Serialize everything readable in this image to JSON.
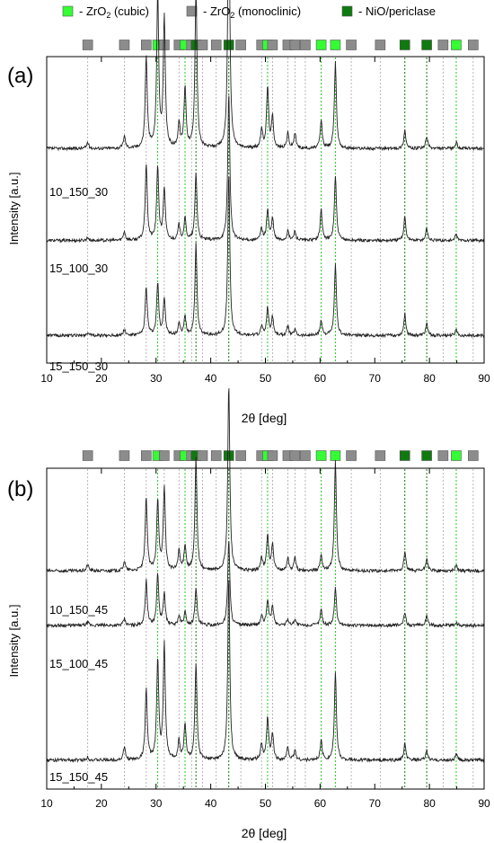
{
  "legend": {
    "items": [
      {
        "label": "- ZrO",
        "sub": "2",
        "suffix": " (cubic)",
        "color": "#33ff33"
      },
      {
        "label": "- ZrO",
        "sub": "2",
        "suffix": " (monoclinic)",
        "color": "#8c8c8c"
      },
      {
        "label": "- NiO/periclase",
        "sub": "",
        "suffix": "",
        "color": "#0f7a0f"
      }
    ]
  },
  "colors": {
    "trace": "#222222",
    "cubic_line": "#22cc22",
    "mono_line": "#a6a6a6",
    "nio_line": "#0f7a0f"
  },
  "reference_markers": [
    {
      "x": 17.5,
      "phase": "monoclinic"
    },
    {
      "x": 24.2,
      "phase": "monoclinic"
    },
    {
      "x": 28.2,
      "phase": "monoclinic"
    },
    {
      "x": 30.3,
      "phase": "cubic"
    },
    {
      "x": 31.5,
      "phase": "monoclinic"
    },
    {
      "x": 34.2,
      "phase": "monoclinic"
    },
    {
      "x": 35.3,
      "phase": "cubic"
    },
    {
      "x": 36.5,
      "phase": "monoclinic"
    },
    {
      "x": 37.3,
      "phase": "nio"
    },
    {
      "x": 38.5,
      "phase": "monoclinic"
    },
    {
      "x": 41.0,
      "phase": "monoclinic"
    },
    {
      "x": 43.3,
      "phase": "nio"
    },
    {
      "x": 45.5,
      "phase": "monoclinic"
    },
    {
      "x": 49.3,
      "phase": "monoclinic"
    },
    {
      "x": 50.4,
      "phase": "cubic"
    },
    {
      "x": 51.3,
      "phase": "monoclinic"
    },
    {
      "x": 54.1,
      "phase": "monoclinic"
    },
    {
      "x": 55.4,
      "phase": "monoclinic"
    },
    {
      "x": 57.3,
      "phase": "monoclinic"
    },
    {
      "x": 60.2,
      "phase": "cubic"
    },
    {
      "x": 62.8,
      "phase": "cubic"
    },
    {
      "x": 65.7,
      "phase": "monoclinic"
    },
    {
      "x": 71.0,
      "phase": "monoclinic"
    },
    {
      "x": 75.5,
      "phase": "nio"
    },
    {
      "x": 79.5,
      "phase": "nio"
    },
    {
      "x": 82.5,
      "phase": "monoclinic"
    },
    {
      "x": 84.9,
      "phase": "cubic"
    },
    {
      "x": 88.0,
      "phase": "monoclinic"
    }
  ],
  "chart_data": [
    {
      "type": "line",
      "panel_label": "(a)",
      "xlabel": "2θ [deg]",
      "ylabel": "Intensity [a.u.]",
      "xlim": [
        10,
        90
      ],
      "xticks": [
        10,
        20,
        30,
        40,
        50,
        60,
        70,
        80,
        90
      ],
      "grid": false,
      "series": [
        {
          "name": "10_150_30",
          "baseline": 0.7,
          "peaks": [
            [
              17.5,
              0.02
            ],
            [
              24.2,
              0.04
            ],
            [
              28.2,
              0.3
            ],
            [
              30.3,
              0.5
            ],
            [
              31.5,
              0.42
            ],
            [
              34.2,
              0.08
            ],
            [
              35.3,
              0.2
            ],
            [
              37.3,
              0.52
            ],
            [
              43.3,
              0.84
            ],
            [
              49.3,
              0.06
            ],
            [
              50.4,
              0.2
            ],
            [
              51.3,
              0.1
            ],
            [
              54.1,
              0.05
            ],
            [
              55.4,
              0.05
            ],
            [
              60.2,
              0.09
            ],
            [
              62.8,
              0.28
            ],
            [
              75.5,
              0.06
            ],
            [
              79.5,
              0.04
            ],
            [
              84.9,
              0.02
            ]
          ]
        },
        {
          "name": "15_100_30",
          "baseline": 0.4,
          "peaks": [
            [
              17.5,
              0.01
            ],
            [
              24.2,
              0.03
            ],
            [
              28.2,
              0.25
            ],
            [
              30.3,
              0.24
            ],
            [
              31.5,
              0.17
            ],
            [
              34.2,
              0.05
            ],
            [
              35.3,
              0.07
            ],
            [
              37.3,
              0.22
            ],
            [
              43.3,
              0.48
            ],
            [
              49.3,
              0.04
            ],
            [
              50.4,
              0.1
            ],
            [
              51.3,
              0.07
            ],
            [
              54.1,
              0.03
            ],
            [
              55.4,
              0.03
            ],
            [
              60.2,
              0.1
            ],
            [
              62.8,
              0.21
            ],
            [
              75.5,
              0.08
            ],
            [
              79.5,
              0.04
            ],
            [
              84.9,
              0.02
            ]
          ]
        },
        {
          "name": "15_150_30",
          "baseline": 0.09,
          "peaks": [
            [
              17.5,
              0.01
            ],
            [
              24.2,
              0.02
            ],
            [
              28.2,
              0.16
            ],
            [
              30.3,
              0.17
            ],
            [
              31.5,
              0.12
            ],
            [
              34.2,
              0.04
            ],
            [
              35.3,
              0.06
            ],
            [
              37.3,
              0.3
            ],
            [
              43.3,
              0.53
            ],
            [
              49.3,
              0.03
            ],
            [
              50.4,
              0.09
            ],
            [
              51.3,
              0.06
            ],
            [
              54.1,
              0.03
            ],
            [
              55.4,
              0.02
            ],
            [
              60.2,
              0.05
            ],
            [
              62.8,
              0.23
            ],
            [
              75.5,
              0.07
            ],
            [
              79.5,
              0.04
            ],
            [
              84.9,
              0.02
            ]
          ]
        }
      ]
    },
    {
      "type": "line",
      "panel_label": "(b)",
      "xlabel": "2θ [deg]",
      "ylabel": "Intensity [a.u.]",
      "xlim": [
        10,
        90
      ],
      "xticks": [
        10,
        20,
        30,
        40,
        50,
        60,
        70,
        80,
        90
      ],
      "grid": false,
      "series": [
        {
          "name": "10_150_45",
          "baseline": 0.68,
          "peaks": [
            [
              17.5,
              0.02
            ],
            [
              24.2,
              0.03
            ],
            [
              28.2,
              0.23
            ],
            [
              30.3,
              0.22
            ],
            [
              31.5,
              0.26
            ],
            [
              34.2,
              0.06
            ],
            [
              35.3,
              0.08
            ],
            [
              37.3,
              0.35
            ],
            [
              43.3,
              0.58
            ],
            [
              49.3,
              0.04
            ],
            [
              50.4,
              0.11
            ],
            [
              51.3,
              0.08
            ],
            [
              54.1,
              0.04
            ],
            [
              55.4,
              0.04
            ],
            [
              60.2,
              0.05
            ],
            [
              62.8,
              0.34
            ],
            [
              75.5,
              0.06
            ],
            [
              79.5,
              0.04
            ],
            [
              84.9,
              0.02
            ]
          ]
        },
        {
          "name": "15_100_45",
          "baseline": 0.51,
          "peaks": [
            [
              17.5,
              0.01
            ],
            [
              24.2,
              0.02
            ],
            [
              28.2,
              0.14
            ],
            [
              30.3,
              0.16
            ],
            [
              31.5,
              0.1
            ],
            [
              34.2,
              0.03
            ],
            [
              35.3,
              0.04
            ],
            [
              37.3,
              0.12
            ],
            [
              43.3,
              0.27
            ],
            [
              49.3,
              0.03
            ],
            [
              50.4,
              0.08
            ],
            [
              51.3,
              0.06
            ],
            [
              54.1,
              0.02
            ],
            [
              55.4,
              0.02
            ],
            [
              60.2,
              0.05
            ],
            [
              62.8,
              0.12
            ],
            [
              75.5,
              0.04
            ],
            [
              79.5,
              0.03
            ],
            [
              84.9,
              0.01
            ]
          ]
        },
        {
          "name": "15_150_45",
          "baseline": 0.09,
          "peaks": [
            [
              17.5,
              0.01
            ],
            [
              24.2,
              0.04
            ],
            [
              28.2,
              0.22
            ],
            [
              30.3,
              0.31
            ],
            [
              31.5,
              0.36
            ],
            [
              34.2,
              0.06
            ],
            [
              35.3,
              0.11
            ],
            [
              37.3,
              0.3
            ],
            [
              43.3,
              0.57
            ],
            [
              49.3,
              0.05
            ],
            [
              50.4,
              0.13
            ],
            [
              51.3,
              0.08
            ],
            [
              54.1,
              0.04
            ],
            [
              55.4,
              0.03
            ],
            [
              60.2,
              0.06
            ],
            [
              62.8,
              0.27
            ],
            [
              75.5,
              0.05
            ],
            [
              79.5,
              0.03
            ],
            [
              84.9,
              0.02
            ]
          ]
        }
      ]
    }
  ]
}
